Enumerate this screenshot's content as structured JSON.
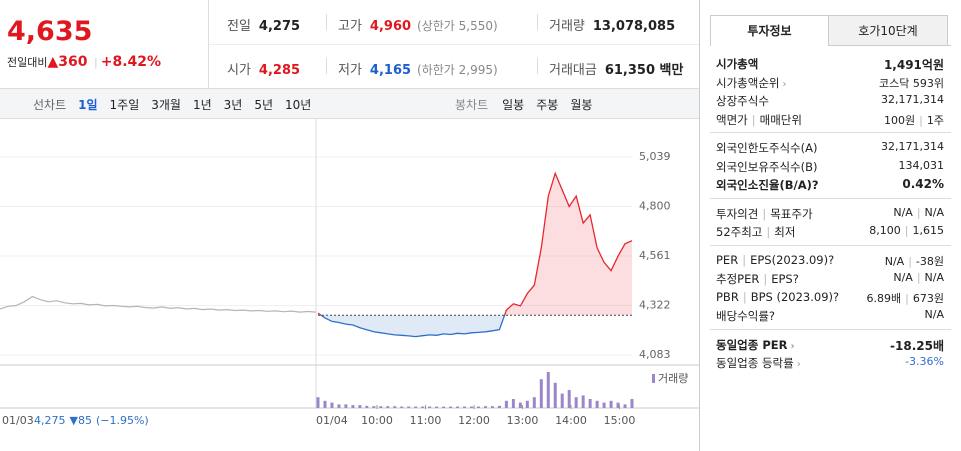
{
  "header": {
    "price": "4,635",
    "change_label": "전일대비",
    "change": "360",
    "rate": "+8.42%"
  },
  "summary": [
    [
      {
        "label": "전일",
        "value": "4,275",
        "color": "#222"
      },
      {
        "label": "고가",
        "value": "4,960",
        "note": "(상한가 5,550)",
        "color": "#e0171e"
      },
      {
        "label": "거래량",
        "value": "13,078,085",
        "color": "#222"
      }
    ],
    [
      {
        "label": "시가",
        "value": "4,285",
        "color": "#e0171e"
      },
      {
        "label": "저가",
        "value": "4,165",
        "note": "(하한가 2,995)",
        "color": "#1d5fd0"
      },
      {
        "label": "거래대금",
        "value": "61,350 백만",
        "color": "#222"
      }
    ]
  ],
  "toolbar": {
    "line_label": "선차트",
    "line_tabs": [
      "1일",
      "1주일",
      "3개월",
      "1년",
      "3년",
      "5년",
      "10년"
    ],
    "candle_label": "봉차트",
    "candle_tabs": [
      "일봉",
      "주봉",
      "월봉"
    ]
  },
  "chart": {
    "ylim": [
      4083,
      5039
    ],
    "yticks": [
      {
        "value": 4083,
        "label": "4,083"
      },
      {
        "value": 4322,
        "label": "4,322"
      },
      {
        "value": 4561,
        "label": "4,561"
      },
      {
        "value": 4800,
        "label": "4,800"
      },
      {
        "value": 5039,
        "label": "5,039"
      }
    ],
    "baseline": 4275,
    "up_color": "#e8262e",
    "down_color": "#2f6fc9",
    "prev_color": "#b5b5b5",
    "volume_color": "#9b86c9",
    "prev_values": [
      4305,
      4318,
      4322,
      4340,
      4365,
      4350,
      4340,
      4345,
      4335,
      4330,
      4332,
      4325,
      4328,
      4320,
      4322,
      4318,
      4315,
      4318,
      4312,
      4310,
      4315,
      4308,
      4312,
      4305,
      4308,
      4302,
      4305,
      4300,
      4302,
      4298,
      4300,
      4296,
      4298,
      4294,
      4296,
      4292,
      4295,
      4290,
      4293,
      4290
    ],
    "values": [
      4285,
      4262,
      4245,
      4240,
      4232,
      4228,
      4215,
      4205,
      4195,
      4190,
      4185,
      4180,
      4178,
      4175,
      4172,
      4176,
      4180,
      4178,
      4185,
      4182,
      4188,
      4185,
      4190,
      4192,
      4195,
      4200,
      4205,
      4300,
      4330,
      4320,
      4380,
      4420,
      4600,
      4850,
      4960,
      4880,
      4800,
      4850,
      4720,
      4760,
      4600,
      4530,
      4490,
      4560,
      4620,
      4635
    ],
    "volume": [
      30,
      20,
      15,
      10,
      10,
      8,
      8,
      6,
      5,
      5,
      5,
      5,
      4,
      4,
      4,
      4,
      4,
      4,
      4,
      4,
      4,
      4,
      4,
      4,
      5,
      5,
      6,
      20,
      25,
      15,
      20,
      30,
      80,
      100,
      70,
      40,
      50,
      30,
      35,
      25,
      20,
      15,
      20,
      15,
      10,
      25
    ],
    "volume_label": "거래량",
    "date_label": "01/04",
    "time_labels": [
      "10:00",
      "11:00",
      "12:00",
      "13:00",
      "14:00",
      "15:00"
    ],
    "footer": {
      "date": "01/03",
      "close": "4,275",
      "change": "85",
      "rate": "(−1.95%)"
    }
  },
  "side": {
    "tabs": [
      "투자정보",
      "호가10단계"
    ],
    "groups": [
      [
        {
          "label": [
            "시가총액"
          ],
          "values": [
            "1,491억원"
          ],
          "bold": true
        },
        {
          "label": [
            "시가총액순위"
          ],
          "arrow": true,
          "values": [
            "코스닥 593위"
          ]
        },
        {
          "label": [
            "상장주식수"
          ],
          "values": [
            "32,171,314"
          ]
        },
        {
          "label": [
            "액면가",
            "매매단위"
          ],
          "values": [
            "100원",
            "1주"
          ]
        }
      ],
      [
        {
          "label": [
            "외국인한도주식수(A)"
          ],
          "values": [
            "32,171,314"
          ]
        },
        {
          "label": [
            "외국인보유주식수(B)"
          ],
          "values": [
            "134,031"
          ]
        },
        {
          "label": [
            "외국인소진율(B/A)"
          ],
          "help": true,
          "values": [
            "0.42%"
          ],
          "bold": true
        }
      ],
      [
        {
          "label": [
            "투자의견",
            "목표주가"
          ],
          "values": [
            "N/A",
            "N/A"
          ]
        },
        {
          "label": [
            "52주최고",
            "최저"
          ],
          "values": [
            "8,100",
            "1,615"
          ]
        }
      ],
      [
        {
          "label": [
            "PER",
            "EPS(2023.09)"
          ],
          "help": true,
          "values": [
            "N/A",
            "-38원"
          ]
        },
        {
          "label": [
            "추정PER",
            "EPS"
          ],
          "help": true,
          "values": [
            "N/A",
            "N/A"
          ]
        },
        {
          "label": [
            "PBR",
            "BPS (2023.09)"
          ],
          "help": true,
          "values": [
            "6.89배",
            "673원"
          ]
        },
        {
          "label": [
            "배당수익률"
          ],
          "help": true,
          "values": [
            "N/A"
          ]
        }
      ],
      [
        {
          "label": [
            "동일업종 PER"
          ],
          "arrow": true,
          "values": [
            "-18.25배"
          ],
          "bold": true
        },
        {
          "label": [
            "동일업종 등락률"
          ],
          "arrow": true,
          "values": [
            "-3.36%"
          ],
          "color": "#2f6fc9"
        }
      ]
    ]
  }
}
